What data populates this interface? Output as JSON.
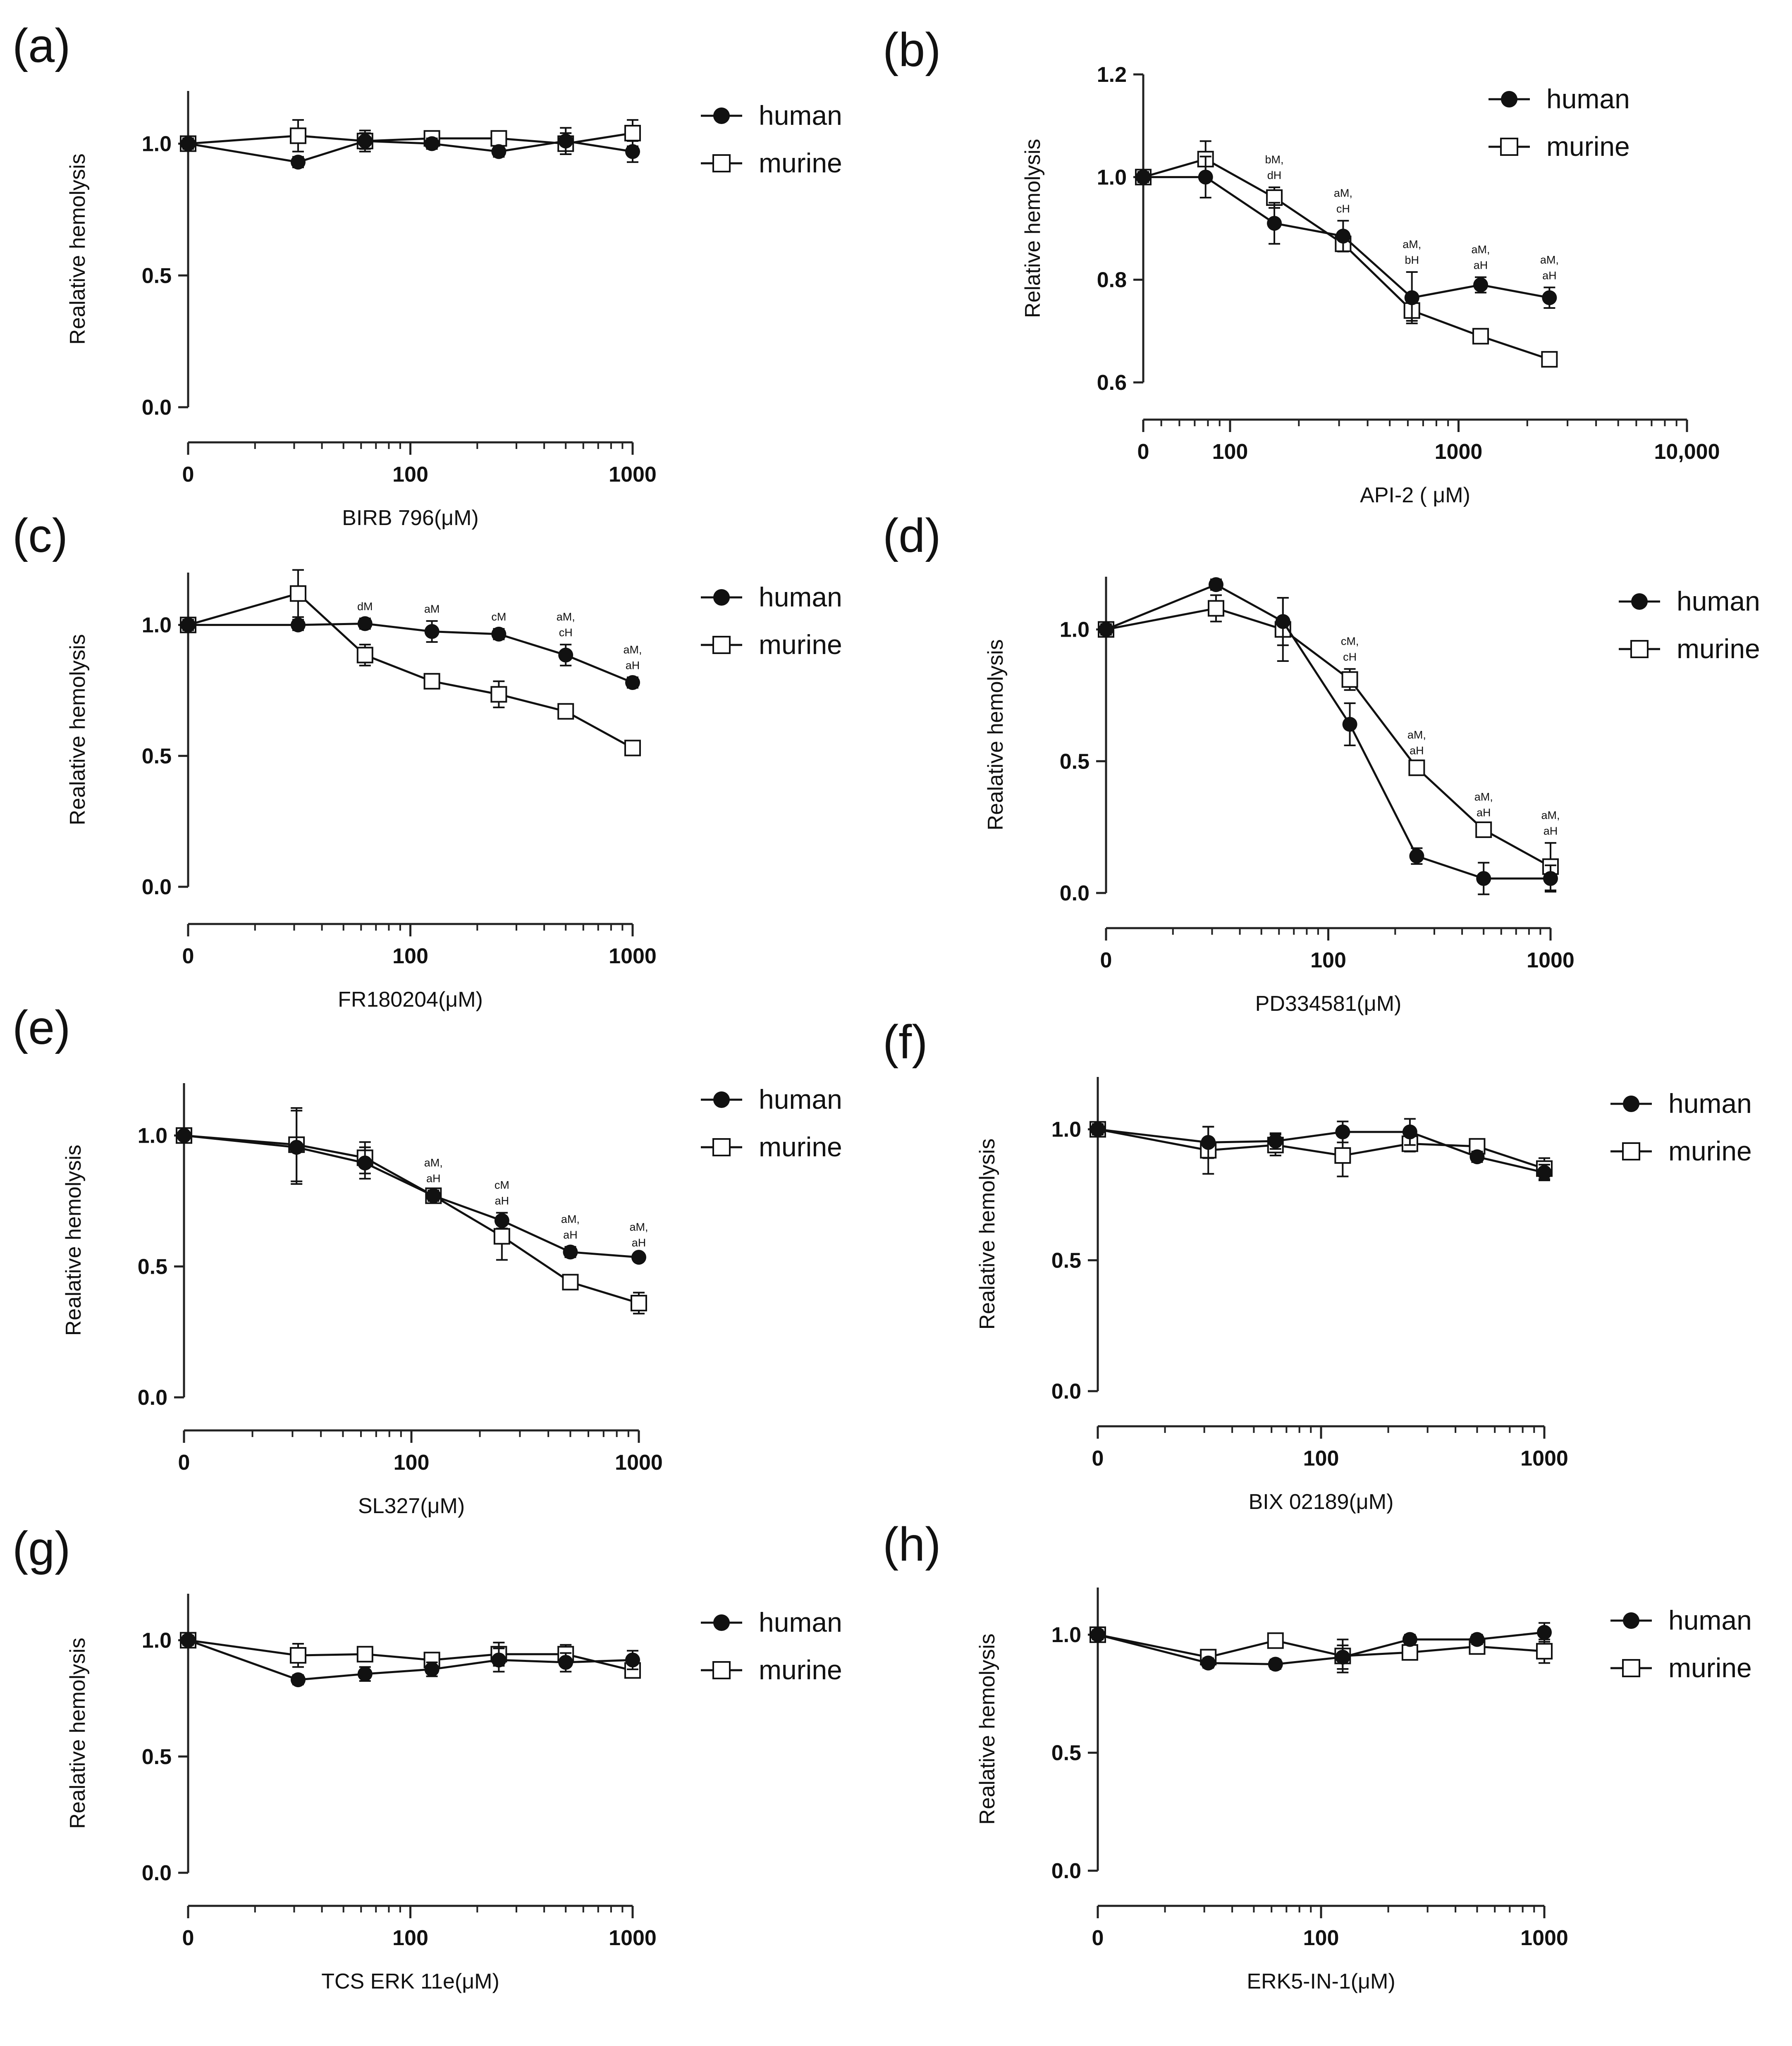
{
  "figure": {
    "legend_labels": {
      "human": "human",
      "murine": "murine"
    }
  },
  "chart_data": [
    {
      "panel": "(a)",
      "type": "line",
      "xlabel": "BIRB 796(μM)",
      "ylabel": "Realative hemolysis",
      "xscale": "log",
      "xticks": [
        {
          "value": 0,
          "label": "0"
        },
        {
          "value": 100,
          "label": "100"
        },
        {
          "value": 1000,
          "label": "1000"
        }
      ],
      "yticks": [
        {
          "value": 0.0,
          "label": "0.0"
        },
        {
          "value": 0.5,
          "label": "0.5"
        },
        {
          "value": 1.0,
          "label": "1.0"
        }
      ],
      "xlim": [
        0,
        1000
      ],
      "ylim": [
        0,
        1.2
      ],
      "x": [
        0,
        31.25,
        62.5,
        125,
        250,
        500,
        1000
      ],
      "series": [
        {
          "name": "human",
          "marker": "filled-circle",
          "values": [
            1.0,
            0.93,
            1.01,
            1.0,
            0.97,
            1.01,
            0.97
          ],
          "errors": [
            0.02,
            0.02,
            0.04,
            0.02,
            0.02,
            0.05,
            0.04
          ]
        },
        {
          "name": "murine",
          "marker": "open-square",
          "values": [
            1.0,
            1.03,
            1.01,
            1.02,
            1.02,
            1.0,
            1.04
          ],
          "errors": [
            0.02,
            0.06,
            0.03,
            0.02,
            0.02,
            0.04,
            0.05
          ]
        }
      ],
      "annotations": []
    },
    {
      "panel": "(b)",
      "type": "line",
      "xlabel": "API-2 ( μM)",
      "ylabel": "Relative hemolysis",
      "xscale": "log",
      "xticks": [
        {
          "value": 0,
          "label": "0"
        },
        {
          "value": 100,
          "label": "100"
        },
        {
          "value": 1000,
          "label": "1000"
        },
        {
          "value": 10000,
          "label": "10,000"
        }
      ],
      "yticks": [
        {
          "value": 0.6,
          "label": "0.6"
        },
        {
          "value": 0.8,
          "label": "0.8"
        },
        {
          "value": 1.0,
          "label": "1.0"
        },
        {
          "value": 1.2,
          "label": "1.2"
        }
      ],
      "xlim": [
        0,
        10000
      ],
      "ylim": [
        0.6,
        1.2
      ],
      "x": [
        0,
        78.125,
        156.25,
        312.5,
        625,
        1250,
        2500
      ],
      "series": [
        {
          "name": "human",
          "marker": "filled-circle",
          "values": [
            1.0,
            1.0,
            0.91,
            0.885,
            0.765,
            0.79,
            0.765
          ],
          "errors": [
            0.01,
            0.04,
            0.04,
            0.03,
            0.05,
            0.015,
            0.02
          ]
        },
        {
          "name": "murine",
          "marker": "open-square",
          "values": [
            1.0,
            1.035,
            0.96,
            0.87,
            0.74,
            0.69,
            0.645
          ],
          "errors": [
            0.01,
            0.035,
            0.02,
            0.015,
            0.02,
            0.01,
            0.01
          ]
        }
      ],
      "annotations": [
        {
          "x": 156.25,
          "line1": "bM,",
          "line2": "dH"
        },
        {
          "x": 312.5,
          "line1": "aM,",
          "line2": "cH"
        },
        {
          "x": 625,
          "line1": "aM,",
          "line2": "bH"
        },
        {
          "x": 1250,
          "line1": "aM,",
          "line2": "aH"
        },
        {
          "x": 2500,
          "line1": "aM,",
          "line2": "aH"
        }
      ]
    },
    {
      "panel": "(c)",
      "type": "line",
      "xlabel": "FR180204(μM)",
      "ylabel": "Realative hemolysis",
      "xscale": "log",
      "xticks": [
        {
          "value": 0,
          "label": "0"
        },
        {
          "value": 100,
          "label": "100"
        },
        {
          "value": 1000,
          "label": "1000"
        }
      ],
      "yticks": [
        {
          "value": 0.0,
          "label": "0.0"
        },
        {
          "value": 0.5,
          "label": "0.5"
        },
        {
          "value": 1.0,
          "label": "1.0"
        }
      ],
      "xlim": [
        0,
        1000
      ],
      "ylim": [
        0,
        1.2
      ],
      "x": [
        0,
        31.25,
        62.5,
        125,
        250,
        500,
        1000
      ],
      "series": [
        {
          "name": "human",
          "marker": "filled-circle",
          "values": [
            1.0,
            1.0,
            1.005,
            0.975,
            0.965,
            0.885,
            0.78
          ],
          "errors": [
            0.02,
            0.02,
            0.02,
            0.04,
            0.02,
            0.04,
            0.02
          ]
        },
        {
          "name": "murine",
          "marker": "open-square",
          "values": [
            1.0,
            1.12,
            0.885,
            0.785,
            0.735,
            0.67,
            0.53
          ],
          "errors": [
            0.02,
            0.09,
            0.04,
            0.02,
            0.05,
            0.02,
            0.02
          ]
        }
      ],
      "annotations": [
        {
          "x": 62.5,
          "line1": "dM",
          "line2": ""
        },
        {
          "x": 125,
          "line1": "aM",
          "line2": ""
        },
        {
          "x": 250,
          "line1": "cM",
          "line2": ""
        },
        {
          "x": 500,
          "line1": "aM,",
          "line2": "cH"
        },
        {
          "x": 1000,
          "line1": "aM,",
          "line2": "aH"
        }
      ]
    },
    {
      "panel": "(d)",
      "type": "line",
      "xlabel": "PD334581(μM)",
      "ylabel": "Realative hemolysis",
      "xscale": "log",
      "xticks": [
        {
          "value": 0,
          "label": "0"
        },
        {
          "value": 100,
          "label": "100"
        },
        {
          "value": 1000,
          "label": "1000"
        }
      ],
      "yticks": [
        {
          "value": 0.0,
          "label": "0.0"
        },
        {
          "value": 0.5,
          "label": "0.5"
        },
        {
          "value": 1.0,
          "label": "1.0"
        }
      ],
      "xlim": [
        0,
        1000
      ],
      "ylim": [
        0,
        1.2
      ],
      "x": [
        0,
        31.25,
        62.5,
        125,
        250,
        500,
        1000
      ],
      "series": [
        {
          "name": "human",
          "marker": "filled-circle",
          "values": [
            1.0,
            1.17,
            1.03,
            0.64,
            0.14,
            0.055,
            0.055
          ],
          "errors": [
            0.02,
            0.02,
            0.09,
            0.08,
            0.03,
            0.06,
            0.05
          ]
        },
        {
          "name": "murine",
          "marker": "open-square",
          "values": [
            1.0,
            1.08,
            1.0,
            0.81,
            0.475,
            0.24,
            0.1
          ],
          "errors": [
            0.02,
            0.05,
            0.12,
            0.04,
            0.02,
            0.02,
            0.09
          ]
        }
      ],
      "annotations": [
        {
          "x": 125,
          "line1": "cM,",
          "line2": "cH"
        },
        {
          "x": 250,
          "line1": "aM,",
          "line2": "aH"
        },
        {
          "x": 500,
          "line1": "aM,",
          "line2": "aH"
        },
        {
          "x": 1000,
          "line1": "aM,",
          "line2": "aH"
        }
      ]
    },
    {
      "panel": "(e)",
      "type": "line",
      "xlabel": "SL327(μM)",
      "ylabel": "Realative hemolysis",
      "xscale": "log",
      "xticks": [
        {
          "value": 0,
          "label": "0"
        },
        {
          "value": 100,
          "label": "100"
        },
        {
          "value": 1000,
          "label": "1000"
        }
      ],
      "yticks": [
        {
          "value": 0.0,
          "label": "0.0"
        },
        {
          "value": 0.5,
          "label": "0.5"
        },
        {
          "value": 1.0,
          "label": "1.0"
        }
      ],
      "xlim": [
        0,
        1000
      ],
      "ylim": [
        0,
        1.2
      ],
      "x": [
        0,
        31.25,
        62.5,
        125,
        250,
        500,
        1000
      ],
      "series": [
        {
          "name": "human",
          "marker": "filled-circle",
          "values": [
            1.0,
            0.955,
            0.895,
            0.77,
            0.675,
            0.555,
            0.535
          ],
          "errors": [
            0.01,
            0.14,
            0.06,
            0.02,
            0.03,
            0.02,
            0.01
          ]
        },
        {
          "name": "murine",
          "marker": "open-square",
          "values": [
            1.0,
            0.965,
            0.915,
            0.77,
            0.615,
            0.44,
            0.36
          ],
          "errors": [
            0.01,
            0.14,
            0.06,
            0.02,
            0.09,
            0.02,
            0.04
          ]
        }
      ],
      "annotations": [
        {
          "x": 125,
          "line1": "aM,",
          "line2": "aH"
        },
        {
          "x": 250,
          "line1": "cM",
          "line2": "aH"
        },
        {
          "x": 500,
          "line1": "aM,",
          "line2": "aH"
        },
        {
          "x": 1000,
          "line1": "aM,",
          "line2": "aH"
        }
      ]
    },
    {
      "panel": "(f)",
      "type": "line",
      "xlabel": "BIX 02189(μM)",
      "ylabel": "Realative hemolysis",
      "xscale": "log",
      "xticks": [
        {
          "value": 0,
          "label": "0"
        },
        {
          "value": 100,
          "label": "100"
        },
        {
          "value": 1000,
          "label": "1000"
        }
      ],
      "yticks": [
        {
          "value": 0.0,
          "label": "0.0"
        },
        {
          "value": 0.5,
          "label": "0.5"
        },
        {
          "value": 1.0,
          "label": "1.0"
        }
      ],
      "xlim": [
        0,
        1000
      ],
      "ylim": [
        0,
        1.2
      ],
      "x": [
        0,
        31.25,
        62.5,
        125,
        250,
        500,
        1000
      ],
      "series": [
        {
          "name": "human",
          "marker": "filled-circle",
          "values": [
            1.0,
            0.95,
            0.955,
            0.99,
            0.99,
            0.895,
            0.835
          ],
          "errors": [
            0.02,
            0.06,
            0.03,
            0.04,
            0.05,
            0.02,
            0.03
          ]
        },
        {
          "name": "murine",
          "marker": "open-square",
          "values": [
            1.0,
            0.92,
            0.94,
            0.9,
            0.945,
            0.935,
            0.85
          ],
          "errors": [
            0.02,
            0.09,
            0.04,
            0.08,
            0.03,
            0.02,
            0.04
          ]
        }
      ],
      "annotations": []
    },
    {
      "panel": "(g)",
      "type": "line",
      "xlabel": "TCS ERK 11e(μM)",
      "ylabel": "Realative hemolysis",
      "xscale": "log",
      "xticks": [
        {
          "value": 0,
          "label": "0"
        },
        {
          "value": 100,
          "label": "100"
        },
        {
          "value": 1000,
          "label": "1000"
        }
      ],
      "yticks": [
        {
          "value": 0.0,
          "label": "0.0"
        },
        {
          "value": 0.5,
          "label": "0.5"
        },
        {
          "value": 1.0,
          "label": "1.0"
        }
      ],
      "xlim": [
        0,
        1000
      ],
      "ylim": [
        0,
        1.2
      ],
      "x": [
        0,
        31.25,
        62.5,
        125,
        250,
        500,
        1000
      ],
      "series": [
        {
          "name": "human",
          "marker": "filled-circle",
          "values": [
            1.0,
            0.83,
            0.855,
            0.875,
            0.915,
            0.905,
            0.915
          ],
          "errors": [
            0.02,
            0.02,
            0.03,
            0.03,
            0.05,
            0.04,
            0.04
          ]
        },
        {
          "name": "murine",
          "marker": "open-square",
          "values": [
            1.0,
            0.935,
            0.94,
            0.915,
            0.94,
            0.94,
            0.87
          ],
          "errors": [
            0.02,
            0.05,
            0.03,
            0.02,
            0.05,
            0.04,
            0.03
          ]
        }
      ],
      "annotations": []
    },
    {
      "panel": "(h)",
      "type": "line",
      "xlabel": "ERK5-IN-1(μM)",
      "ylabel": "Realative hemolysis",
      "xscale": "log",
      "xticks": [
        {
          "value": 0,
          "label": "0"
        },
        {
          "value": 100,
          "label": "100"
        },
        {
          "value": 1000,
          "label": "1000"
        }
      ],
      "yticks": [
        {
          "value": 0.0,
          "label": "0.0"
        },
        {
          "value": 0.5,
          "label": "0.5"
        },
        {
          "value": 1.0,
          "label": "1.0"
        }
      ],
      "xlim": [
        0,
        1000
      ],
      "ylim": [
        0,
        1.2
      ],
      "x": [
        0,
        31.25,
        62.5,
        125,
        250,
        500,
        1000
      ],
      "series": [
        {
          "name": "human",
          "marker": "filled-circle",
          "values": [
            1.0,
            0.88,
            0.875,
            0.905,
            0.98,
            0.98,
            1.01
          ],
          "errors": [
            0.02,
            0.02,
            0.02,
            0.05,
            0.02,
            0.02,
            0.04
          ]
        },
        {
          "name": "murine",
          "marker": "open-square",
          "values": [
            1.0,
            0.905,
            0.975,
            0.91,
            0.925,
            0.95,
            0.93
          ],
          "errors": [
            0.02,
            0.03,
            0.02,
            0.07,
            0.03,
            0.03,
            0.05
          ]
        }
      ],
      "annotations": []
    }
  ]
}
